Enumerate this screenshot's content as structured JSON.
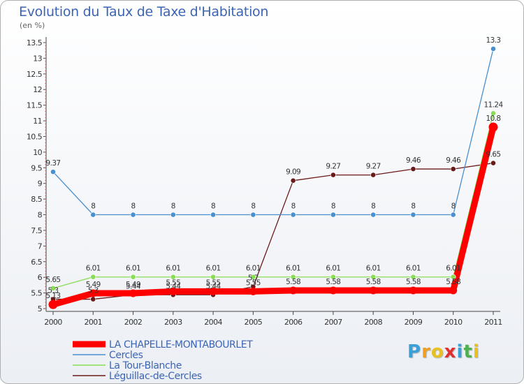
{
  "chart_data": {
    "type": "line",
    "title": "Evolution du Taux de Taxe d'Habitation",
    "unit_label": "(en %)",
    "x": [
      "2000",
      "2001",
      "2002",
      "2003",
      "2004",
      "2005",
      "2006",
      "2007",
      "2008",
      "2009",
      "2010",
      "2011"
    ],
    "ylim": [
      5,
      13.5
    ],
    "yticks": [
      "5",
      "5.5",
      "6",
      "6.5",
      "7",
      "7.5",
      "8",
      "8.5",
      "9",
      "9.5",
      "10",
      "10.5",
      "11",
      "11.5",
      "12",
      "12.5",
      "13",
      "13.5"
    ],
    "grid": false,
    "legend_position": "bottom-left",
    "series": [
      {
        "name": "LA CHAPELLE-MONTABOURLET",
        "color": "#ff0000",
        "values": [
          5.13,
          5.49,
          5.49,
          5.55,
          5.55,
          5.55,
          5.58,
          5.58,
          5.58,
          5.58,
          5.58,
          10.8
        ],
        "labels": [
          "5.13",
          "5.49",
          "5.49",
          "5.55",
          "5.55",
          "5.55",
          "5.58",
          "5.58",
          "5.58",
          "5.58",
          "5.58",
          "10.8"
        ]
      },
      {
        "name": "Cercles",
        "color": "#4a8fce",
        "values": [
          9.37,
          8,
          8,
          8,
          8,
          8,
          8,
          8,
          8,
          8,
          8,
          13.3
        ],
        "labels": [
          "9.37",
          "8",
          "8",
          "8",
          "8",
          "8",
          "8",
          "8",
          "8",
          "8",
          "8",
          "13.3"
        ]
      },
      {
        "name": "La Tour-Blanche",
        "color": "#88dd55",
        "values": [
          5.65,
          6.01,
          6.01,
          6.01,
          6.01,
          6.01,
          6.01,
          6.01,
          6.01,
          6.01,
          6.01,
          11.24
        ],
        "labels": [
          "5.65",
          "6.01",
          "6.01",
          "6.01",
          "6.01",
          "6.01",
          "6.01",
          "6.01",
          "6.01",
          "6.01",
          "6.01",
          "11.24"
        ]
      },
      {
        "name": "Léguillac-de-Cercles",
        "color": "#6b1a1a",
        "values": [
          5.3,
          5.3,
          5.44,
          5.44,
          5.44,
          5.7,
          9.09,
          9.27,
          9.27,
          9.46,
          9.46,
          9.65
        ],
        "labels": [
          "5.3",
          "5.3",
          "5.44",
          "5.44",
          "5.44",
          "5.7",
          "9.09",
          "9.27",
          "9.27",
          "9.46",
          "9.46",
          "9.65"
        ]
      }
    ]
  },
  "legend": {
    "items": [
      "LA CHAPELLE-MONTABOURLET",
      "Cercles",
      "La Tour-Blanche",
      "Léguillac-de-Cercles"
    ]
  },
  "brand": {
    "logo_letters": [
      "P",
      "r",
      "o",
      "x",
      "i",
      "t",
      "i"
    ],
    "logo_colors": [
      "#3aa0d8",
      "#f0a020",
      "#e8c020",
      "#e03030",
      "#3aa0d8",
      "#50b050",
      "#e8c020"
    ]
  }
}
